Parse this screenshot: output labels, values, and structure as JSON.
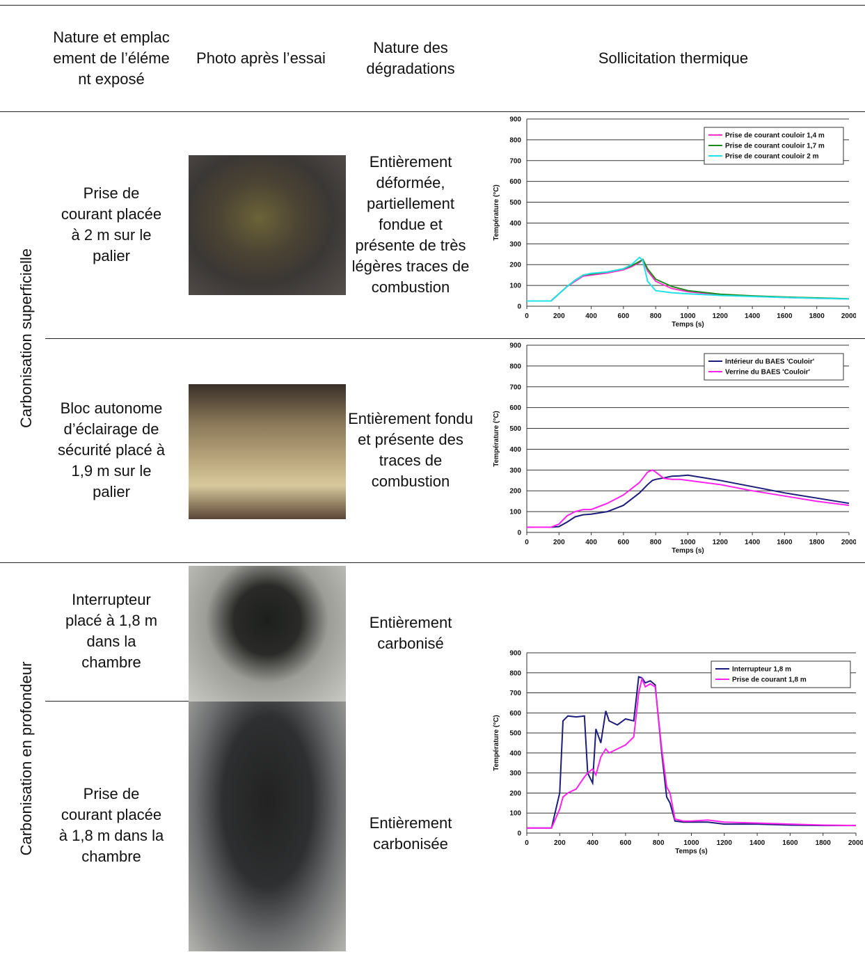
{
  "table": {
    "headers": [
      "Nature et emplacement de l’élément exposé",
      "Photo après l’essai",
      "Nature des dégradations",
      "Sollicitation thermique"
    ],
    "groups": [
      {
        "label": "Carbonisation superficielle",
        "rows": [
          {
            "element": "Prise de courant placée à 2 m sur le palier",
            "degradations": "Entièrement déformée, partiellement fondue et présente de très légères traces de combustion"
          },
          {
            "element": "Bloc autonome d’éclairage de sécurité placé à 1,9 m sur le palier",
            "degradations": "Entièrement fondu et présente des traces de combustion"
          }
        ]
      },
      {
        "label": "Carbonisation en profondeur",
        "rows": [
          {
            "element": "Interrupteur placé à 1,8 m dans la chambre",
            "degradations": "Entièrement carbonisé"
          },
          {
            "element": "Prise de courant placée à 1,8 m dans la chambre",
            "degradations": "Entièrement carbonisée"
          }
        ]
      }
    ]
  },
  "chart_data": [
    {
      "type": "line",
      "xlabel": "Temps (s)",
      "ylabel": "Température (°C)",
      "x": [
        0,
        150,
        200,
        250,
        300,
        350,
        400,
        500,
        600,
        650,
        700,
        720,
        750,
        800,
        900,
        1000,
        1200,
        1400,
        1600,
        1800,
        2000
      ],
      "series": [
        {
          "name": "Prise de courant couloir 1,4 m",
          "color": "#ff33cc",
          "values": [
            25,
            25,
            60,
            95,
            120,
            145,
            150,
            160,
            175,
            190,
            210,
            225,
            170,
            120,
            85,
            70,
            55,
            48,
            42,
            38,
            35
          ]
        },
        {
          "name": "Prise de courant couloir 1,7 m",
          "color": "#1a8a1a",
          "values": [
            25,
            25,
            60,
            95,
            125,
            150,
            155,
            165,
            180,
            195,
            215,
            225,
            180,
            130,
            95,
            75,
            58,
            50,
            44,
            40,
            36
          ]
        },
        {
          "name": "Prise de courant couloir 2 m",
          "color": "#22e0e8",
          "values": [
            25,
            25,
            60,
            95,
            125,
            150,
            158,
            165,
            180,
            200,
            235,
            220,
            120,
            75,
            65,
            60,
            52,
            47,
            42,
            38,
            35
          ]
        }
      ],
      "xlim": [
        0,
        2000
      ],
      "xticks": [
        0,
        200,
        400,
        600,
        800,
        1000,
        1200,
        1400,
        1600,
        1800,
        2000
      ],
      "ylim": [
        0,
        900
      ],
      "yticks": [
        0,
        100,
        200,
        300,
        400,
        500,
        600,
        700,
        800,
        900
      ],
      "grid": true,
      "legend": "upper right"
    },
    {
      "type": "line",
      "xlabel": "Temps (s)",
      "ylabel": "Température (°C)",
      "x": [
        0,
        150,
        200,
        250,
        300,
        350,
        400,
        500,
        600,
        700,
        750,
        780,
        800,
        850,
        900,
        950,
        1000,
        1200,
        1400,
        1600,
        1800,
        2000
      ],
      "series": [
        {
          "name": "Intérieur du BAES 'Couloir'",
          "color": "#1c1c7a",
          "values": [
            25,
            25,
            28,
            50,
            75,
            85,
            88,
            100,
            130,
            190,
            230,
            250,
            255,
            262,
            270,
            272,
            275,
            250,
            220,
            190,
            165,
            140
          ]
        },
        {
          "name": "Verrine du BAES 'Couloir'",
          "color": "#ff22ee",
          "values": [
            25,
            25,
            40,
            80,
            100,
            110,
            110,
            140,
            180,
            240,
            290,
            300,
            290,
            260,
            255,
            255,
            250,
            230,
            200,
            175,
            150,
            130
          ]
        }
      ],
      "xlim": [
        0,
        2000
      ],
      "xticks": [
        0,
        200,
        400,
        600,
        800,
        1000,
        1200,
        1400,
        1600,
        1800,
        2000
      ],
      "ylim": [
        0,
        900
      ],
      "yticks": [
        0,
        100,
        200,
        300,
        400,
        500,
        600,
        700,
        800,
        900
      ],
      "grid": true,
      "legend": "upper right"
    },
    {
      "type": "line",
      "xlabel": "Temps (s)",
      "ylabel": "Température (°C)",
      "x": [
        0,
        150,
        200,
        220,
        250,
        300,
        350,
        370,
        400,
        420,
        450,
        480,
        500,
        550,
        600,
        650,
        680,
        700,
        720,
        750,
        780,
        820,
        850,
        870,
        900,
        950,
        1000,
        1100,
        1200,
        1400,
        1600,
        1800,
        2000
      ],
      "series": [
        {
          "name": "Interrupteur 1,8 m",
          "color": "#1c1c7a",
          "values": [
            25,
            25,
            200,
            560,
            585,
            580,
            585,
            300,
            250,
            520,
            450,
            610,
            560,
            540,
            570,
            560,
            780,
            775,
            750,
            760,
            740,
            400,
            180,
            150,
            60,
            55,
            55,
            55,
            45,
            45,
            40,
            38,
            38
          ]
        },
        {
          "name": "Prise de courant 1,8 m",
          "color": "#ff22ee",
          "values": [
            25,
            25,
            120,
            180,
            200,
            220,
            280,
            300,
            320,
            290,
            380,
            420,
            400,
            420,
            440,
            480,
            700,
            770,
            730,
            745,
            730,
            420,
            230,
            200,
            70,
            60,
            60,
            65,
            55,
            50,
            45,
            40,
            38
          ]
        }
      ],
      "xlim": [
        0,
        2000
      ],
      "xticks": [
        0,
        200,
        400,
        600,
        800,
        1000,
        1200,
        1400,
        1600,
        1800,
        2000
      ],
      "ylim": [
        0,
        900
      ],
      "yticks": [
        0,
        100,
        200,
        300,
        400,
        500,
        600,
        700,
        800,
        900
      ],
      "grid": true,
      "legend": "upper right"
    }
  ]
}
